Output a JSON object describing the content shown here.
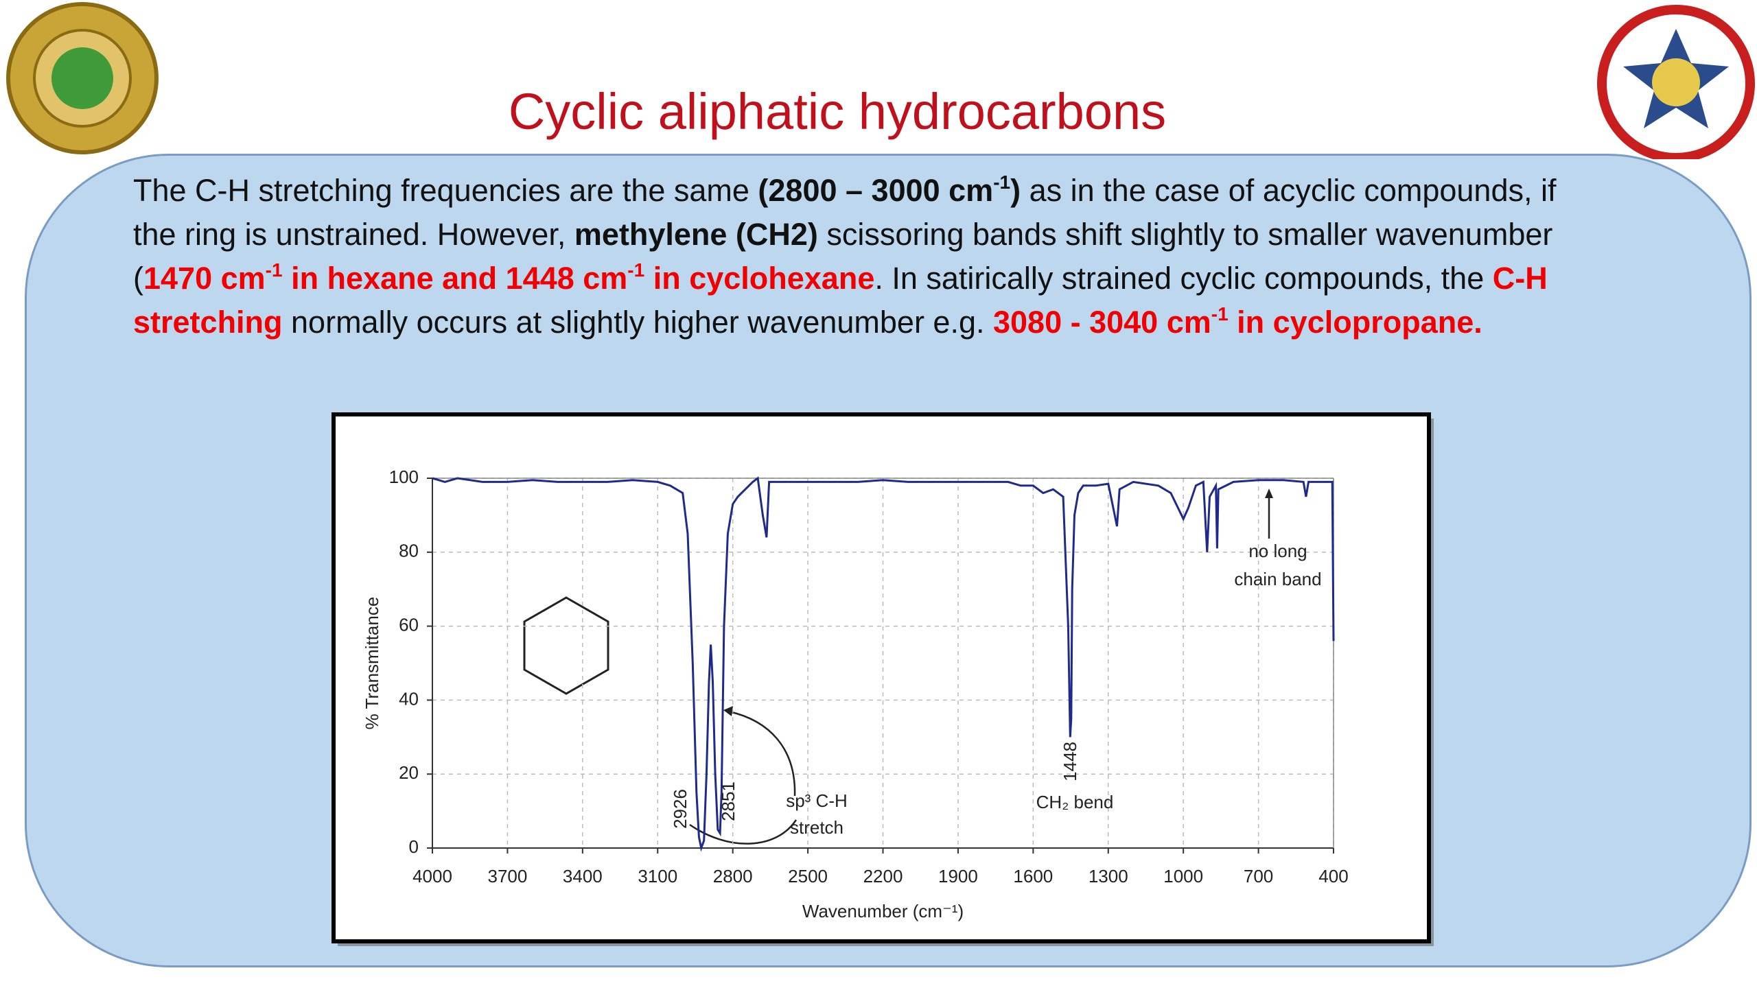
{
  "title": "Cyclic aliphatic hydrocarbons",
  "paragraph": {
    "runs": [
      {
        "text": "The C-H stretching frequencies are the same ",
        "style": "normal"
      },
      {
        "text": "(2800 – 3000 cm",
        "style": "bold"
      },
      {
        "text": "-1",
        "style": "bold-sup"
      },
      {
        "text": ")",
        "style": "bold"
      },
      {
        "text": " as in the case of acyclic compounds, if the ring is unstrained. However, ",
        "style": "normal"
      },
      {
        "text": "methylene (CH2)",
        "style": "bold"
      },
      {
        "text": " scissoring bands shift slightly to smaller wavenumber (",
        "style": "normal"
      },
      {
        "text": "1470 cm",
        "style": "red"
      },
      {
        "text": "-1",
        "style": "red-sup"
      },
      {
        "text": " in hexane and 1448 cm",
        "style": "red"
      },
      {
        "text": "-1",
        "style": "red-sup"
      },
      {
        "text": " in cyclohexane",
        "style": "red"
      },
      {
        "text": ". In satirically strained cyclic compounds, the ",
        "style": "normal"
      },
      {
        "text": "C-H stretching",
        "style": "red"
      },
      {
        "text": " normally occurs at slightly higher wavenumber e.g. ",
        "style": "normal"
      },
      {
        "text": "3080 - 3040 cm",
        "style": "red"
      },
      {
        "text": "-1",
        "style": "red-sup"
      },
      {
        "text": " in cyclopropane.",
        "style": "red"
      }
    ]
  },
  "chart_data": {
    "type": "line",
    "x_label": "Wavenumber (cm⁻¹)",
    "y_label": "% Transmittance",
    "x": [
      4000,
      3950,
      3900,
      3800,
      3700,
      3600,
      3500,
      3400,
      3300,
      3200,
      3100,
      3050,
      3000,
      2980,
      2960,
      2945,
      2935,
      2926,
      2915,
      2905,
      2895,
      2888,
      2880,
      2870,
      2860,
      2851,
      2845,
      2835,
      2820,
      2800,
      2780,
      2750,
      2720,
      2700,
      2680,
      2665,
      2655,
      2600,
      2500,
      2400,
      2300,
      2200,
      2100,
      2000,
      1900,
      1800,
      1700,
      1650,
      1600,
      1560,
      1520,
      1480,
      1460,
      1452,
      1448,
      1444,
      1435,
      1420,
      1400,
      1350,
      1300,
      1265,
      1255,
      1200,
      1100,
      1050,
      1000,
      980,
      950,
      920,
      905,
      895,
      870,
      865,
      860,
      800,
      700,
      600,
      520,
      510,
      500,
      450,
      405,
      400
    ],
    "values": [
      100,
      99,
      100,
      99,
      99,
      99.5,
      99,
      99,
      99,
      99.5,
      99,
      98,
      96,
      85,
      50,
      15,
      3,
      0,
      2,
      20,
      45,
      55,
      45,
      20,
      5,
      4,
      15,
      60,
      85,
      93,
      95,
      97,
      99,
      100,
      90,
      84,
      99,
      99,
      99,
      99,
      99,
      99.5,
      99,
      99,
      99,
      99,
      99,
      98,
      98,
      96,
      97,
      95,
      60,
      30,
      35,
      70,
      90,
      96,
      98,
      98,
      98.5,
      87,
      97,
      99,
      98,
      96,
      89,
      92,
      98,
      99,
      80,
      95,
      98,
      81,
      97,
      99,
      99.5,
      99.5,
      99,
      95,
      99,
      99,
      99,
      56
    ],
    "color": "#1f2a8c",
    "xlim": [
      4000,
      400
    ],
    "ylim": [
      0,
      100
    ],
    "xticks": [
      4000,
      3700,
      3400,
      3100,
      2800,
      2500,
      2200,
      1900,
      1600,
      1300,
      1000,
      700,
      400
    ],
    "yticks": [
      0,
      20,
      40,
      60,
      80,
      100
    ],
    "grid": true,
    "annotations": [
      "2926",
      "2851",
      "sp³ C-H",
      "stretch",
      "1448",
      "CH₂ bend",
      "no long",
      "chain band"
    ]
  }
}
